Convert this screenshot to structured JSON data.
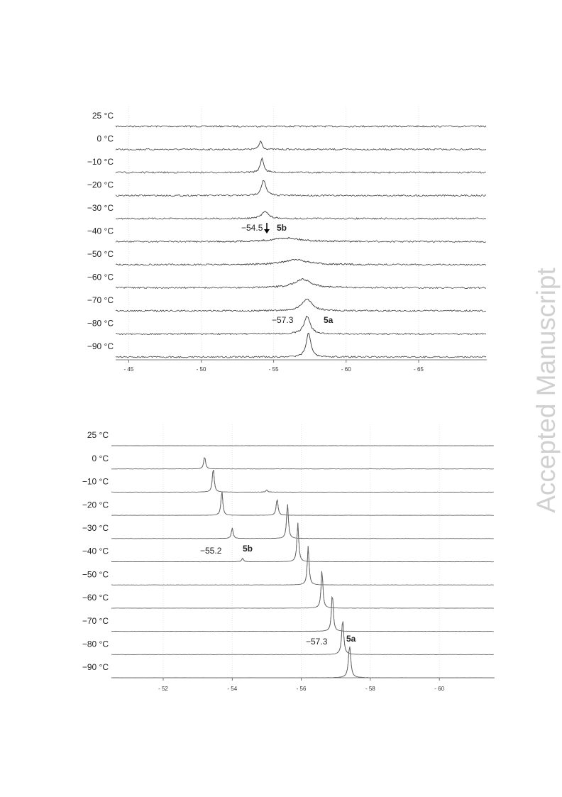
{
  "watermark": "Accepted Manuscript",
  "chart_data": [
    {
      "type": "spectra",
      "xlim": [
        -44.1,
        -69.7
      ],
      "xticks": [
        {
          "value": -45,
          "label": "- 45"
        },
        {
          "value": -50,
          "label": "- 50"
        },
        {
          "value": -55,
          "label": "- 55"
        },
        {
          "value": -60,
          "label": "- 60"
        },
        {
          "value": -65,
          "label": "- 65"
        }
      ],
      "grid": true,
      "series": [
        {
          "name": "25 °C",
          "x": [],
          "values": [],
          "widths": []
        },
        {
          "name": "0 °C",
          "x": [
            -54.1
          ],
          "values": [
            12
          ],
          "widths": [
            0.12
          ]
        },
        {
          "name": "−10 °C",
          "x": [
            -54.2
          ],
          "values": [
            20
          ],
          "widths": [
            0.14
          ]
        },
        {
          "name": "−20 °C",
          "x": [
            -54.3
          ],
          "values": [
            22
          ],
          "widths": [
            0.18
          ]
        },
        {
          "name": "−30 °C",
          "x": [
            -54.4
          ],
          "values": [
            11
          ],
          "widths": [
            0.25
          ]
        },
        {
          "name": "−40 °C",
          "x": [
            -55.9
          ],
          "values": [
            5
          ],
          "widths": [
            1.2
          ]
        },
        {
          "name": "−50 °C",
          "x": [
            -56.5
          ],
          "values": [
            7
          ],
          "widths": [
            1.0
          ]
        },
        {
          "name": "−60 °C",
          "x": [
            -57.0
          ],
          "values": [
            12
          ],
          "widths": [
            0.7
          ]
        },
        {
          "name": "−70 °C",
          "x": [
            -57.3
          ],
          "values": [
            17
          ],
          "widths": [
            0.4
          ]
        },
        {
          "name": "−80 °C",
          "x": [
            -57.3
          ],
          "values": [
            25
          ],
          "widths": [
            0.25
          ]
        },
        {
          "name": "−90 °C",
          "x": [
            -57.4
          ],
          "values": [
            35
          ],
          "widths": [
            0.18
          ]
        }
      ],
      "annotations": [
        "−54.5",
        "5b",
        "−57.3",
        "5a"
      ]
    },
    {
      "type": "spectra",
      "xlim": [
        -50.5,
        -61.6
      ],
      "xticks": [
        {
          "value": -52,
          "label": "- 52"
        },
        {
          "value": -54,
          "label": "- 54"
        },
        {
          "value": -56,
          "label": "- 56"
        },
        {
          "value": -58,
          "label": "- 58"
        },
        {
          "value": -60,
          "label": "- 60"
        }
      ],
      "grid": true,
      "series": [
        {
          "name": "25 °C",
          "x": [],
          "values": [],
          "widths": []
        },
        {
          "name": "0 °C",
          "x": [
            -53.2
          ],
          "values": [
            18
          ],
          "widths": [
            0.03
          ]
        },
        {
          "name": "−10 °C",
          "x": [
            -53.45,
            -55.0
          ],
          "values": [
            35,
            3
          ],
          "widths": [
            0.03,
            0.03
          ]
        },
        {
          "name": "−20 °C",
          "x": [
            -53.7,
            -55.3
          ],
          "values": [
            35,
            24
          ],
          "widths": [
            0.03,
            0.03
          ]
        },
        {
          "name": "−30 °C",
          "x": [
            -54.0,
            -55.6
          ],
          "values": [
            15,
            50
          ],
          "widths": [
            0.03,
            0.03
          ]
        },
        {
          "name": "−40 °C",
          "x": [
            -54.3,
            -55.9
          ],
          "values": [
            5,
            55
          ],
          "widths": [
            0.03,
            0.03
          ]
        },
        {
          "name": "−50 °C",
          "x": [
            -56.2
          ],
          "values": [
            55
          ],
          "widths": [
            0.03
          ]
        },
        {
          "name": "−60 °C",
          "x": [
            -56.6
          ],
          "values": [
            55
          ],
          "widths": [
            0.03
          ]
        },
        {
          "name": "−70 °C",
          "x": [
            -56.9
          ],
          "values": [
            55
          ],
          "widths": [
            0.03
          ]
        },
        {
          "name": "−80 °C",
          "x": [
            -57.2
          ],
          "values": [
            50
          ],
          "widths": [
            0.035
          ]
        },
        {
          "name": "−90 °C",
          "x": [
            -57.4
          ],
          "values": [
            45
          ],
          "widths": [
            0.04
          ]
        }
      ],
      "annotations": [
        "−55.2",
        "5b",
        "−57.3",
        "5a"
      ]
    }
  ]
}
